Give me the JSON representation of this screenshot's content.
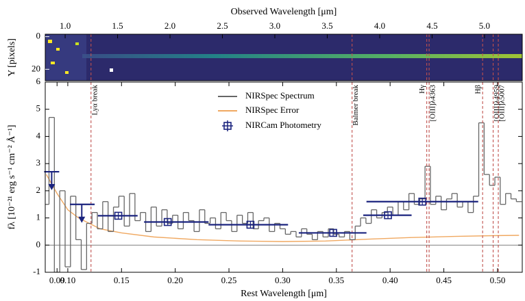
{
  "chart_data": {
    "type": "spectrum",
    "top_panel": {
      "xlabel": "Observed Wavelength [μm]",
      "ylabel": "Y [pixels]",
      "xlim": [
        0.81,
        5.36
      ],
      "xticks": [
        {
          "value": 1,
          "label": "1.0"
        },
        1.5,
        {
          "value": 2,
          "label": "2.0"
        },
        2.5,
        {
          "value": 3,
          "label": "3.0"
        },
        3.5,
        {
          "value": 4,
          "label": "4.0"
        },
        4.5,
        {
          "value": 5,
          "label": "5.0"
        }
      ],
      "ylim": [
        -1.5,
        27
      ],
      "yticks": [
        0,
        20
      ]
    },
    "xlabel": "Rest Wavelength [μm]",
    "ylabel": "fλ [10⁻²¹ erg s⁻¹ cm⁻² Å⁻¹]",
    "xlim": [
      0.079,
      0.523
    ],
    "xticks": [
      0.09,
      {
        "value": 0.1,
        "label": "0.10"
      },
      0.15,
      {
        "value": 0.2,
        "label": "0.20"
      },
      0.25,
      {
        "value": 0.3,
        "label": "0.30"
      },
      0.35,
      {
        "value": 0.4,
        "label": "0.40"
      },
      0.45,
      {
        "value": 0.5,
        "label": "0.50"
      }
    ],
    "ylim": [
      -1,
      6
    ],
    "yticks": [
      -1,
      0,
      1,
      2,
      3,
      4,
      5,
      6
    ],
    "series": [
      {
        "name": "NIRSpec Spectrum",
        "color": "#666666",
        "x": [
          0.08,
          0.085,
          0.09,
          0.095,
          0.1,
          0.105,
          0.11,
          0.115,
          0.12,
          0.125,
          0.13,
          0.135,
          0.14,
          0.145,
          0.15,
          0.155,
          0.16,
          0.165,
          0.17,
          0.175,
          0.18,
          0.185,
          0.19,
          0.195,
          0.2,
          0.205,
          0.21,
          0.215,
          0.22,
          0.225,
          0.23,
          0.235,
          0.24,
          0.245,
          0.25,
          0.255,
          0.26,
          0.265,
          0.27,
          0.275,
          0.28,
          0.285,
          0.29,
          0.295,
          0.3,
          0.305,
          0.31,
          0.315,
          0.32,
          0.325,
          0.33,
          0.335,
          0.34,
          0.345,
          0.35,
          0.355,
          0.36,
          0.365,
          0.37,
          0.375,
          0.38,
          0.385,
          0.39,
          0.395,
          0.4,
          0.405,
          0.41,
          0.415,
          0.42,
          0.425,
          0.43,
          0.435,
          0.44,
          0.445,
          0.45,
          0.455,
          0.46,
          0.465,
          0.47,
          0.475,
          0.48,
          0.485,
          0.49,
          0.495,
          0.5,
          0.505,
          0.51,
          0.515,
          0.52
        ],
        "values": [
          1.5,
          4.7,
          -1.0,
          2.0,
          -0.8,
          1.8,
          0.2,
          -0.9,
          0.8,
          1.2,
          0.6,
          1.6,
          0.5,
          1.4,
          1.8,
          0.7,
          1.9,
          0.9,
          1.2,
          0.5,
          1.4,
          0.7,
          1.3,
          0.8,
          1.1,
          0.6,
          1.2,
          0.9,
          0.5,
          1.3,
          0.8,
          1.0,
          0.6,
          1.2,
          0.9,
          0.5,
          1.1,
          0.8,
          1.2,
          0.6,
          0.9,
          1.0,
          0.5,
          0.8,
          0.6,
          0.4,
          0.5,
          0.3,
          0.6,
          0.4,
          0.2,
          0.5,
          0.3,
          0.6,
          0.4,
          0.3,
          0.5,
          0.2,
          0.7,
          1.0,
          0.8,
          1.3,
          1.0,
          1.2,
          1.4,
          1.1,
          1.6,
          1.3,
          1.9,
          1.5,
          1.7,
          2.9,
          1.5,
          1.8,
          1.3,
          1.7,
          1.9,
          1.4,
          1.6,
          1.2,
          1.8,
          4.5,
          2.6,
          2.2,
          2.5,
          1.5,
          1.9,
          1.7,
          1.6
        ]
      },
      {
        "name": "NIRSpec Error",
        "color": "#f0a860",
        "x": [
          0.08,
          0.09,
          0.1,
          0.11,
          0.12,
          0.13,
          0.15,
          0.18,
          0.22,
          0.26,
          0.3,
          0.34,
          0.38,
          0.42,
          0.46,
          0.5,
          0.52
        ],
        "values": [
          2.6,
          1.9,
          1.3,
          1.0,
          0.8,
          0.6,
          0.45,
          0.3,
          0.2,
          0.15,
          0.13,
          0.15,
          0.22,
          0.28,
          0.32,
          0.35,
          0.36
        ]
      },
      {
        "name": "NIRCam Photometry",
        "color": "#1a237e",
        "x": [
          0.085,
          0.113,
          0.147,
          0.193,
          0.27,
          0.347,
          0.398,
          0.43
        ],
        "values": [
          2.7,
          1.5,
          1.08,
          0.85,
          0.75,
          0.45,
          1.1,
          1.6
        ],
        "xlo": [
          0.078,
          0.102,
          0.128,
          0.171,
          0.231,
          0.315,
          0.375,
          0.378
        ],
        "xhi": [
          0.092,
          0.125,
          0.165,
          0.231,
          0.305,
          0.378,
          0.42,
          0.482
        ],
        "upper_limit": [
          true,
          true,
          false,
          false,
          false,
          false,
          false,
          false
        ]
      }
    ],
    "lines": [
      {
        "label": "Lyα break",
        "x": 0.1216
      },
      {
        "label": "Balmer break",
        "x": 0.3646
      },
      {
        "label": "Hγ",
        "x": 0.4341
      },
      {
        "label": "[OIII]λ4363",
        "x": 0.4363
      },
      {
        "label": "Hβ",
        "x": 0.4861
      },
      {
        "label": "[OIII]λ4959",
        "x": 0.4959
      },
      {
        "label": "[OIII]λ5007",
        "x": 0.5007
      }
    ],
    "line_color": "#c0504d"
  }
}
